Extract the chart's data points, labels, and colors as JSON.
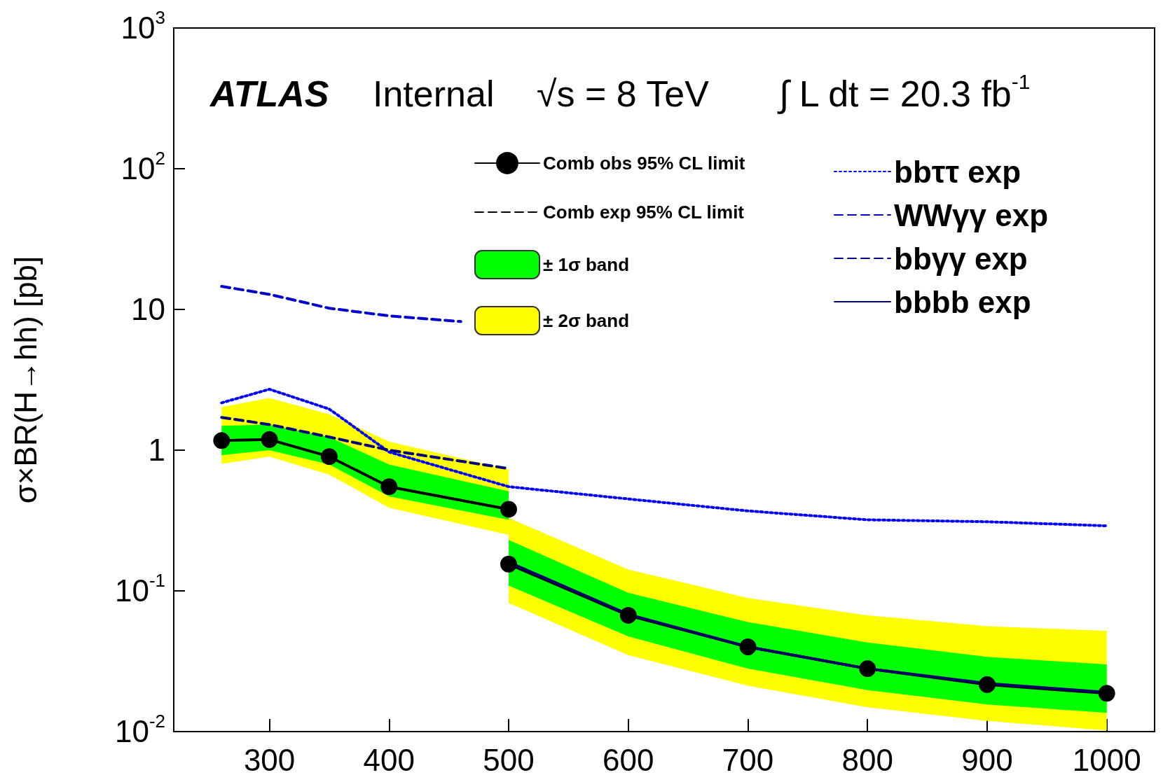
{
  "chart_data": {
    "type": "line",
    "ylabel": "σ×BR(H→hh) [pb]",
    "annotations": [
      "ATLAS",
      "Internal",
      "√s = 8 TeV",
      "∫ L dt = 20.3 fb$^{-1}$"
    ],
    "xlim": [
      220,
      1040
    ],
    "xticks": [
      300,
      400,
      500,
      600,
      700,
      800,
      900,
      1000
    ],
    "ylim": [
      0.01,
      1000
    ],
    "yticks": [
      {
        "value": 0.01,
        "label": "10$^{-2}$"
      },
      {
        "value": 0.1,
        "label": "10$^{-1}$"
      },
      1,
      10,
      {
        "value": 100,
        "label": "10$^{2}$"
      },
      {
        "value": 1000,
        "label": "10$^{3}$"
      }
    ],
    "log": true,
    "grid": false,
    "legend": "top right",
    "series": [
      {
        "name": "Comb obs 95% CL limit",
        "color": "#000000",
        "marker": "circle",
        "line_style": "solid",
        "x": [
          260,
          300,
          350,
          400,
          500,
          null,
          500,
          600,
          700,
          800,
          900,
          1000
        ],
        "values": [
          1.17,
          1.19,
          0.9,
          0.55,
          0.38,
          null,
          0.155,
          0.067,
          0.04,
          0.028,
          0.0216,
          0.0187
        ]
      },
      {
        "name": "Comb exp 95% CL limit",
        "color": "#000000",
        "marker": "none",
        "line_style": "dashed"
      },
      {
        "name": "± 1σ band",
        "color": "#00ff00",
        "marker": "none",
        "x": [
          260,
          300,
          350,
          400,
          500,
          500,
          600,
          700,
          800,
          900,
          1000
        ],
        "values": [
          null,
          null,
          null,
          null,
          null,
          null,
          null,
          null,
          null,
          null,
          null
        ],
        "lower": [
          0.92,
          1.0,
          0.79,
          0.47,
          0.32,
          0.109,
          0.0475,
          0.028,
          0.0197,
          0.0156,
          0.0136
        ],
        "upper": [
          1.49,
          1.52,
          1.24,
          0.79,
          0.51,
          0.23,
          0.097,
          0.06,
          0.043,
          0.034,
          0.03
        ]
      },
      {
        "name": "± 2σ band",
        "color": "#ffff00",
        "marker": "none",
        "x": [
          260,
          300,
          350,
          400,
          500,
          500,
          600,
          700,
          800,
          900,
          1000
        ],
        "values": [
          null,
          null,
          null,
          null,
          null,
          null,
          null,
          null,
          null,
          null,
          null
        ],
        "lower": [
          0.8,
          0.9,
          0.67,
          0.39,
          0.25,
          0.082,
          0.035,
          0.0212,
          0.0149,
          0.0119,
          0.0102
        ],
        "upper": [
          2.02,
          2.35,
          1.8,
          1.15,
          0.73,
          0.33,
          0.142,
          0.089,
          0.067,
          0.056,
          0.052
        ]
      },
      {
        "name": "bbττ exp",
        "color": "#0000ff",
        "marker": "none",
        "line_style": "dotted",
        "x": [
          260,
          300,
          350,
          400,
          500,
          600,
          700,
          800,
          900,
          1000
        ],
        "values": [
          2.17,
          2.71,
          1.96,
          0.97,
          0.55,
          0.45,
          0.37,
          0.32,
          0.31,
          0.29
        ]
      },
      {
        "name": "WWγγ exp",
        "color": "#0000cc",
        "marker": "none",
        "line_style": "dashed",
        "x": [
          260,
          300,
          350,
          400,
          460
        ],
        "values": [
          14.6,
          12.8,
          10.2,
          9.0,
          8.2
        ]
      },
      {
        "name": "bbγγ exp",
        "color": "#000080",
        "marker": "none",
        "line_style": "dashed",
        "x": [
          260,
          300,
          350,
          400,
          500
        ],
        "values": [
          1.71,
          1.52,
          1.24,
          1.0,
          0.74
        ]
      },
      {
        "name": "bbbb exp",
        "color": "#000066",
        "marker": "none",
        "line_style": "solid",
        "x": [
          500,
          600,
          700,
          800,
          900,
          1000
        ],
        "values": [
          0.16,
          0.068,
          0.04,
          0.028,
          0.022,
          0.019
        ]
      }
    ]
  }
}
